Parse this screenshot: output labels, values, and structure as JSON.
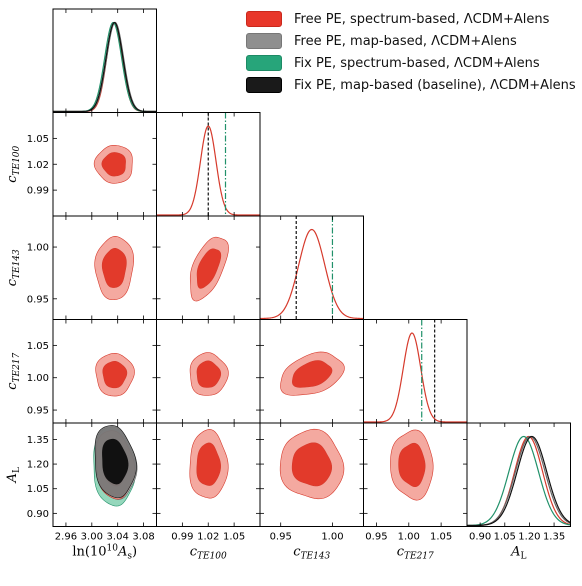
{
  "legend": [
    {
      "label": "Free PE, spectrum-based, ΛCDM+Alens",
      "color": "#e8372a"
    },
    {
      "label": "Free PE, map-based, ΛCDM+Alens",
      "color": "#8f8f8f"
    },
    {
      "label": "Fix PE, spectrum-based, ΛCDM+Alens",
      "color": "#27a57a"
    },
    {
      "label": "Fix PE, map-based (baseline), ΛCDM+Alens",
      "color": "#1a1a1a"
    }
  ],
  "chart_data": {
    "type": "triangle",
    "parameters": [
      {
        "name": "ln(10^10 A_s)",
        "range": [
          2.94,
          3.1
        ],
        "ticks": [
          "2.96",
          "3.00",
          "3.04",
          "3.08"
        ],
        "tick_values": [
          2.96,
          3.0,
          3.04,
          3.08
        ],
        "label_main": "ln(10",
        "label_sup": "10",
        "label_rest": "A",
        "label_sub": "s",
        "label_end": ")"
      },
      {
        "name": "c_TE100",
        "range": [
          0.96,
          1.08
        ],
        "ticks": [
          "0.99",
          "1.02",
          "1.05"
        ],
        "tick_values": [
          0.99,
          1.02,
          1.05
        ],
        "label_main": "c",
        "label_sub": "TE100"
      },
      {
        "name": "c_TE143",
        "range": [
          0.93,
          1.03
        ],
        "ticks": [
          "0.95",
          "1.00"
        ],
        "tick_values": [
          0.95,
          1.0
        ],
        "label_main": "c",
        "label_sub": "TE143"
      },
      {
        "name": "c_TE217",
        "range": [
          0.93,
          1.09
        ],
        "ticks": [
          "0.95",
          "1.00",
          "1.05"
        ],
        "tick_values": [
          0.95,
          1.0,
          1.05
        ],
        "label_main": "c",
        "label_sub": "TE217"
      },
      {
        "name": "A_L",
        "range": [
          0.82,
          1.45
        ],
        "ticks": [
          "0.90",
          "1.05",
          "1.20",
          "1.35"
        ],
        "tick_values": [
          0.9,
          1.05,
          1.2,
          1.35
        ],
        "label_main": "A",
        "label_sub": "L"
      }
    ],
    "series": [
      {
        "name": "Free PE, spectrum-based, ΛCDM+Alens",
        "mean": [
          3.035,
          1.02,
          0.98,
          1.005,
          1.195
        ],
        "sigma": [
          0.012,
          0.009,
          0.0125,
          0.0135,
          0.085
        ]
      },
      {
        "name": "Free PE, map-based, ΛCDM+Alens",
        "mean": [
          3.036,
          null,
          null,
          null,
          1.205
        ],
        "sigma": [
          0.013,
          null,
          null,
          null,
          0.09
        ]
      },
      {
        "name": "Fix PE, spectrum-based, ΛCDM+Alens",
        "mean": [
          3.033,
          1.04,
          1.0,
          1.02,
          1.165
        ],
        "sigma": [
          0.013,
          null,
          null,
          null,
          0.09
        ]
      },
      {
        "name": "Fix PE, map-based (baseline), ΛCDM+Alens",
        "mean": [
          3.035,
          1.02,
          0.965,
          1.04,
          1.215
        ],
        "sigma": [
          0.013,
          null,
          null,
          null,
          0.09
        ]
      }
    ],
    "fixed_value_lines": [
      {
        "param": "c_TE100",
        "values": [
          {
            "series": 2,
            "value": 1.04
          },
          {
            "series": 3,
            "value": 1.02
          }
        ]
      },
      {
        "param": "c_TE143",
        "values": [
          {
            "series": 2,
            "value": 1.0
          },
          {
            "series": 3,
            "value": 0.965
          }
        ]
      },
      {
        "param": "c_TE217",
        "values": [
          {
            "series": 2,
            "value": 1.02
          },
          {
            "series": 3,
            "value": 1.04
          }
        ]
      }
    ],
    "correlations": {
      "1-0": 0.0,
      "2-0": 0.05,
      "2-1": 0.55,
      "3-0": 0.0,
      "3-1": 0.0,
      "3-2": 0.35,
      "4-0": -0.15,
      "4-1": 0.0,
      "4-2": -0.05,
      "4-3": -0.05
    },
    "contour_levels": [
      "68%",
      "95%"
    ]
  }
}
